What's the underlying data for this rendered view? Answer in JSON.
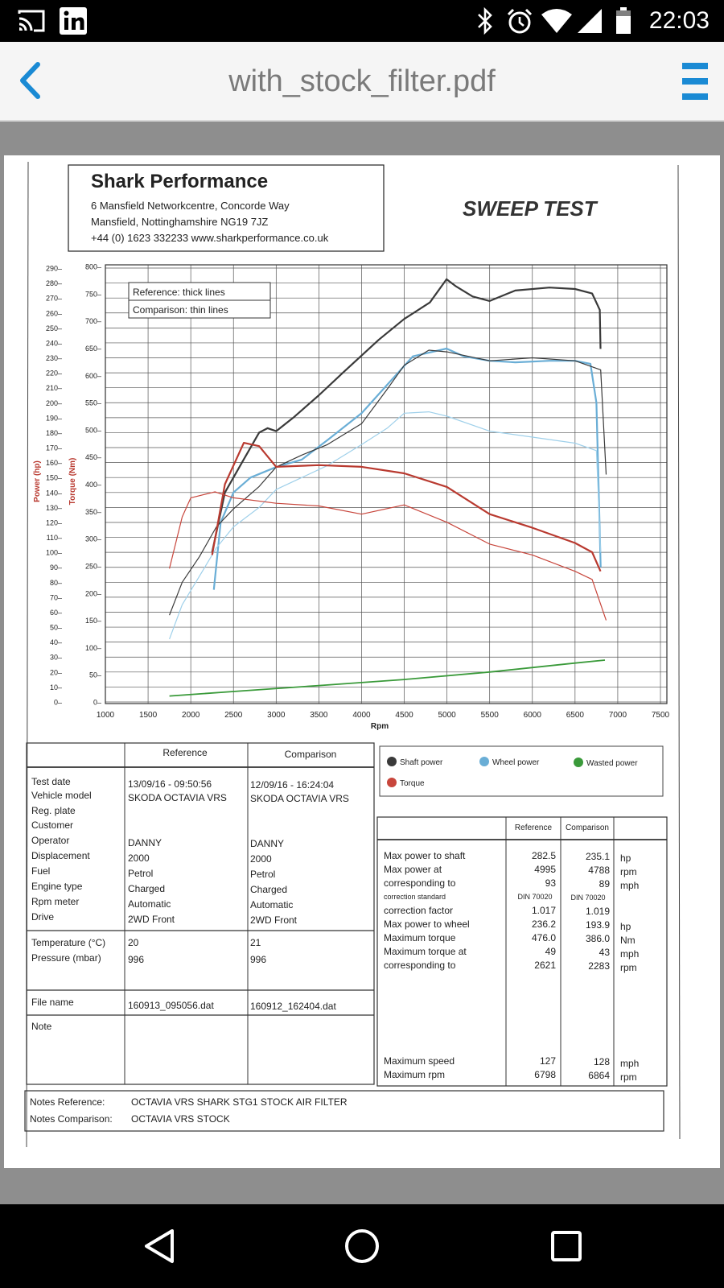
{
  "status": {
    "time": "22:03",
    "icons": [
      "cast-icon",
      "linkedin-icon",
      "bluetooth-icon",
      "alarm-icon",
      "wifi-icon",
      "signal-icon",
      "battery-icon"
    ]
  },
  "appbar": {
    "title": "with_stock_filter.pdf",
    "back_icon": "chevron-left-icon",
    "menu_icon": "hamburger-menu-icon",
    "accent": "#1a8ad4"
  },
  "doc": {
    "company": "Shark Performance",
    "address1": "6 Mansfield Networkcentre, Concorde Way",
    "address2": "Mansfield, Nottinghamshire NG19 7JZ",
    "contact": "+44 (0) 1623 332233 www.sharkperformance.co.uk",
    "heading": "SWEEP TEST",
    "legend_box": [
      "Reference: thick lines",
      "Comparison: thin lines"
    ],
    "series_legend": [
      "Shaft power",
      "Wheel power",
      "Wasted power",
      "Torque"
    ],
    "vehicle": {
      "headers": [
        "Reference",
        "Comparison"
      ],
      "labels": [
        "Test date",
        "Vehicle model",
        "Reg. plate",
        "Customer",
        "Operator",
        "Displacement",
        "Fuel",
        "Engine type",
        "Rpm meter",
        "Drive"
      ],
      "reference": [
        "13/09/16 - 09:50:56",
        "SKODA OCTAVIA VRS",
        "",
        "",
        "DANNY",
        "2000",
        "Petrol",
        "Charged",
        "Automatic",
        "2WD Front"
      ],
      "comparison": [
        "12/09/16 - 16:24:04",
        "SKODA OCTAVIA VRS",
        "",
        "",
        "DANNY",
        "2000",
        "Petrol",
        "Charged",
        "Automatic",
        "2WD Front"
      ],
      "env_labels": [
        "Temperature (°C)",
        "Pressure (mbar)"
      ],
      "env_reference": [
        "20",
        "996"
      ],
      "env_comparison": [
        "21",
        "996"
      ],
      "file_label": "File name",
      "file_reference": "160913_095056.dat",
      "file_comparison": "160912_162404.dat",
      "note_label": "Note"
    },
    "results": {
      "headers": [
        "Reference",
        "Comparison"
      ],
      "rows": [
        {
          "label": "Max power to shaft",
          "ref": "282.5",
          "cmp": "235.1",
          "unit": "hp",
          "small": false
        },
        {
          "label": "Max power at",
          "ref": "4995",
          "cmp": "4788",
          "unit": "rpm",
          "small": false
        },
        {
          "label": "corresponding to",
          "ref": "93",
          "cmp": "89",
          "unit": "mph",
          "small": false
        },
        {
          "label": "correction standard",
          "ref": "DIN 70020",
          "cmp": "DIN 70020",
          "unit": "",
          "small": true
        },
        {
          "label": "correction factor",
          "ref": "1.017",
          "cmp": "1.019",
          "unit": "",
          "small": false
        },
        {
          "label": "Max power to wheel",
          "ref": "236.2",
          "cmp": "193.9",
          "unit": "hp",
          "small": false
        },
        {
          "label": "Maximum torque",
          "ref": "476.0",
          "cmp": "386.0",
          "unit": "Nm",
          "small": false
        },
        {
          "label": "Maximum torque at",
          "ref": "49",
          "cmp": "43",
          "unit": "mph",
          "small": false
        },
        {
          "label": "corresponding to",
          "ref": "2621",
          "cmp": "2283",
          "unit": "rpm",
          "small": false
        }
      ],
      "bottom_rows": [
        {
          "label": "Maximum speed",
          "ref": "127",
          "cmp": "128",
          "unit": "mph"
        },
        {
          "label": "Maximum rpm",
          "ref": "6798",
          "cmp": "6864",
          "unit": "rpm"
        }
      ]
    },
    "notes": {
      "ref_label": "Notes Reference:",
      "ref_value": "OCTAVIA VRS SHARK STG1 STOCK AIR FILTER",
      "cmp_label": "Notes Comparison:",
      "cmp_value": "OCTAVIA VRS STOCK"
    }
  },
  "chart_data": {
    "type": "line",
    "xlabel": "Rpm",
    "ylabel_power": "Power (hp)",
    "ylabel_torque": "Torque (Nm)",
    "x_ticks": [
      1000,
      1500,
      2000,
      2500,
      3000,
      3500,
      4000,
      4500,
      5000,
      5500,
      6000,
      6500,
      7000,
      7500
    ],
    "power_ticks": [
      0,
      10,
      20,
      30,
      40,
      50,
      60,
      70,
      80,
      90,
      100,
      110,
      120,
      130,
      140,
      150,
      160,
      170,
      180,
      190,
      200,
      210,
      220,
      230,
      240,
      250,
      260,
      270,
      280,
      290
    ],
    "torque_ticks": [
      0,
      50,
      100,
      150,
      200,
      250,
      300,
      350,
      400,
      450,
      500,
      550,
      600,
      650,
      700,
      750,
      800
    ],
    "xlim": [
      1000,
      7500
    ],
    "ylim_power": [
      0,
      290
    ],
    "ylim_torque": [
      0,
      800
    ],
    "grid": true,
    "series": [
      {
        "name": "Shaft power",
        "color": "#3a3a3a",
        "width": 2.2,
        "axis": "power",
        "points": [
          [
            2250,
            100
          ],
          [
            2400,
            140
          ],
          [
            2600,
            160
          ],
          [
            2800,
            180
          ],
          [
            2900,
            183
          ],
          [
            3000,
            181
          ],
          [
            3200,
            190
          ],
          [
            3500,
            205
          ],
          [
            3800,
            221
          ],
          [
            4200,
            242
          ],
          [
            4500,
            256
          ],
          [
            4800,
            267
          ],
          [
            4995,
            282.5
          ],
          [
            5100,
            278
          ],
          [
            5300,
            271
          ],
          [
            5500,
            268
          ],
          [
            5800,
            275
          ],
          [
            6200,
            277
          ],
          [
            6500,
            276
          ],
          [
            6700,
            273
          ],
          [
            6790,
            262
          ],
          [
            6798,
            236
          ]
        ]
      },
      {
        "name": "Wheel power",
        "color": "#6aaed6",
        "width": 2.2,
        "axis": "power",
        "points": [
          [
            2270,
            75
          ],
          [
            2350,
            120
          ],
          [
            2500,
            140
          ],
          [
            2700,
            150
          ],
          [
            3000,
            157
          ],
          [
            3300,
            162
          ],
          [
            3600,
            175
          ],
          [
            4000,
            193
          ],
          [
            4300,
            212
          ],
          [
            4600,
            231
          ],
          [
            4995,
            236.2
          ],
          [
            5200,
            231
          ],
          [
            5500,
            228
          ],
          [
            5800,
            227
          ],
          [
            6200,
            228
          ],
          [
            6500,
            228
          ],
          [
            6680,
            226
          ],
          [
            6750,
            200
          ],
          [
            6800,
            90
          ]
        ]
      },
      {
        "name": "Shaft power",
        "color": "#3a3a3a",
        "width": 1.2,
        "axis": "power",
        "points": [
          [
            1750,
            58
          ],
          [
            1900,
            80
          ],
          [
            2100,
            97
          ],
          [
            2300,
            117
          ],
          [
            2500,
            129
          ],
          [
            2800,
            144
          ],
          [
            3000,
            157
          ],
          [
            3300,
            165
          ],
          [
            3600,
            172
          ],
          [
            4000,
            186
          ],
          [
            4300,
            209
          ],
          [
            4500,
            225
          ],
          [
            4788,
            235.1
          ],
          [
            5000,
            234
          ],
          [
            5500,
            228
          ],
          [
            6000,
            230
          ],
          [
            6500,
            228
          ],
          [
            6800,
            222
          ],
          [
            6864,
            152
          ]
        ]
      },
      {
        "name": "Wheel power",
        "color": "#9fd0ea",
        "width": 1.2,
        "axis": "power",
        "points": [
          [
            1750,
            42
          ],
          [
            1900,
            65
          ],
          [
            2100,
            84
          ],
          [
            2300,
            103
          ],
          [
            2500,
            117
          ],
          [
            2800,
            130
          ],
          [
            3000,
            142
          ],
          [
            3300,
            150
          ],
          [
            3600,
            158
          ],
          [
            4000,
            172
          ],
          [
            4300,
            183
          ],
          [
            4500,
            193
          ],
          [
            4788,
            193.9
          ],
          [
            5000,
            191
          ],
          [
            5500,
            181
          ],
          [
            6000,
            177
          ],
          [
            6500,
            173
          ],
          [
            6750,
            168
          ],
          [
            6800,
            100
          ]
        ]
      },
      {
        "name": "Torque",
        "color": "#b93a30",
        "width": 2.2,
        "axis": "torque",
        "points": [
          [
            2250,
            270
          ],
          [
            2400,
            400
          ],
          [
            2621,
            476
          ],
          [
            2800,
            470
          ],
          [
            3000,
            432
          ],
          [
            3500,
            435
          ],
          [
            4000,
            432
          ],
          [
            4500,
            420
          ],
          [
            5000,
            395
          ],
          [
            5500,
            345
          ],
          [
            6000,
            320
          ],
          [
            6500,
            292
          ],
          [
            6700,
            275
          ],
          [
            6798,
            240
          ]
        ]
      },
      {
        "name": "Torque",
        "color": "#c8463c",
        "width": 1.2,
        "axis": "torque",
        "points": [
          [
            1750,
            245
          ],
          [
            1900,
            340
          ],
          [
            2000,
            375
          ],
          [
            2283,
            386
          ],
          [
            2500,
            375
          ],
          [
            3000,
            365
          ],
          [
            3500,
            360
          ],
          [
            4000,
            345
          ],
          [
            4500,
            362
          ],
          [
            5000,
            330
          ],
          [
            5500,
            290
          ],
          [
            6000,
            270
          ],
          [
            6500,
            240
          ],
          [
            6700,
            225
          ],
          [
            6864,
            150
          ]
        ]
      },
      {
        "name": "Wasted power",
        "color": "#3a9a3a",
        "width": 1.8,
        "axis": "power",
        "points": [
          [
            1750,
            4
          ],
          [
            2500,
            7
          ],
          [
            3500,
            11
          ],
          [
            4500,
            15
          ],
          [
            5500,
            20
          ],
          [
            6500,
            26
          ],
          [
            6850,
            28
          ]
        ]
      }
    ]
  }
}
